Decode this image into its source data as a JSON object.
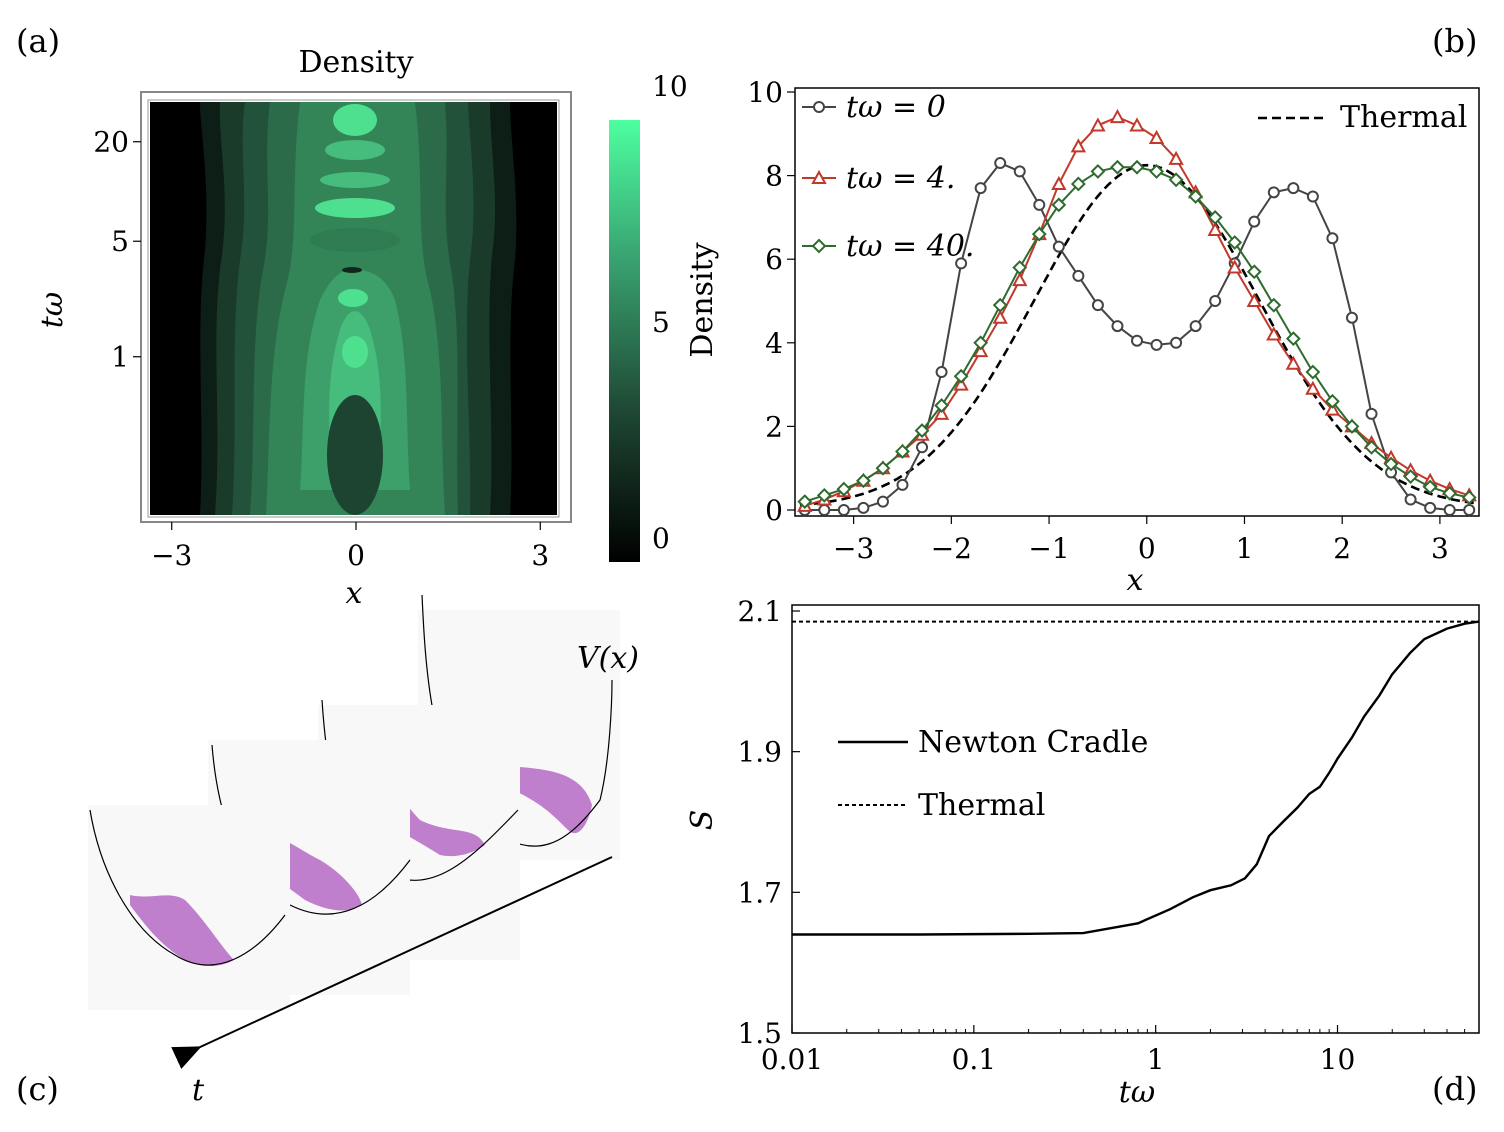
{
  "panels": {
    "a": "(a)",
    "b": "(b)",
    "c": "(c)",
    "d": "(d)"
  },
  "chart_data": [
    {
      "id": "a",
      "type": "heatmap",
      "title": "Density",
      "xlabel": "x",
      "ylabel": "tω",
      "x_ticks": [
        "−3",
        "0",
        "3"
      ],
      "x_tick_values": [
        -3,
        0,
        3
      ],
      "xlim": [
        -3.5,
        3.5
      ],
      "y_ticks": [
        "1",
        "5",
        "20"
      ],
      "y_tick_values": [
        1,
        5,
        20
      ],
      "y_scale": "log",
      "ylim": [
        0.1,
        40
      ],
      "colorbar": {
        "ticks": [
          "0",
          "5",
          "10"
        ],
        "tick_values": [
          0,
          5,
          10
        ],
        "range": [
          0,
          10
        ],
        "colors": [
          "#000000",
          "#1f4a35",
          "#3aa673",
          "#4dffa0"
        ]
      }
    },
    {
      "id": "b",
      "type": "line",
      "xlabel": "x",
      "ylabel": "Density",
      "xlim": [
        -3.6,
        3.4
      ],
      "ylim": [
        0,
        10
      ],
      "x_ticks": [
        "−3",
        "−2",
        "−1",
        "0",
        "1",
        "2",
        "3"
      ],
      "x_tick_values": [
        -3,
        -2,
        -1,
        0,
        1,
        2,
        3
      ],
      "y_ticks": [
        "0",
        "2",
        "4",
        "6",
        "8",
        "10"
      ],
      "y_tick_values": [
        0,
        2,
        4,
        6,
        8,
        10
      ],
      "x": [
        -3.5,
        -3.3,
        -3.1,
        -2.9,
        -2.7,
        -2.5,
        -2.3,
        -2.1,
        -1.9,
        -1.7,
        -1.5,
        -1.3,
        -1.1,
        -0.9,
        -0.7,
        -0.5,
        -0.3,
        -0.1,
        0.1,
        0.3,
        0.5,
        0.7,
        0.9,
        1.1,
        1.3,
        1.5,
        1.7,
        1.9,
        2.1,
        2.3,
        2.5,
        2.7,
        2.9,
        3.1,
        3.3
      ],
      "series": [
        {
          "name": "tω = 0",
          "color": "#444444",
          "marker": "circle",
          "values": [
            0.0,
            0.0,
            0.0,
            0.05,
            0.2,
            0.6,
            1.5,
            3.3,
            5.9,
            7.7,
            8.3,
            8.1,
            7.3,
            6.3,
            5.6,
            4.9,
            4.4,
            4.05,
            3.95,
            4.0,
            4.4,
            5.0,
            5.9,
            6.9,
            7.6,
            7.7,
            7.5,
            6.5,
            4.6,
            2.3,
            0.9,
            0.25,
            0.05,
            0.0,
            0.0
          ]
        },
        {
          "name": "tω = 4.",
          "color": "#c0392b",
          "marker": "triangle",
          "values": [
            0.1,
            0.25,
            0.45,
            0.7,
            1.0,
            1.4,
            1.8,
            2.3,
            3.0,
            3.8,
            4.6,
            5.5,
            6.6,
            7.8,
            8.7,
            9.2,
            9.4,
            9.2,
            8.9,
            8.4,
            7.6,
            6.7,
            5.8,
            5.0,
            4.2,
            3.5,
            2.9,
            2.4,
            2.0,
            1.6,
            1.25,
            0.95,
            0.7,
            0.5,
            0.35
          ]
        },
        {
          "name": "tω = 40.",
          "color": "#2e6b2e",
          "marker": "diamond",
          "values": [
            0.2,
            0.35,
            0.5,
            0.7,
            1.0,
            1.4,
            1.9,
            2.5,
            3.2,
            4.0,
            4.9,
            5.8,
            6.6,
            7.3,
            7.8,
            8.1,
            8.2,
            8.2,
            8.1,
            7.9,
            7.5,
            7.0,
            6.4,
            5.7,
            4.9,
            4.1,
            3.3,
            2.6,
            2.0,
            1.5,
            1.1,
            0.8,
            0.55,
            0.4,
            0.3
          ]
        }
      ],
      "reference": {
        "name": "Thermal",
        "style": "dashed",
        "color": "#000000"
      }
    },
    {
      "id": "d",
      "type": "line",
      "xlabel": "tω",
      "ylabel": "S",
      "x_scale": "log",
      "xlim": [
        0.01,
        60
      ],
      "ylim": [
        1.5,
        2.1
      ],
      "x_ticks": [
        "0.01",
        "0.1",
        "1",
        "10"
      ],
      "x_tick_values": [
        0.01,
        0.1,
        1,
        10
      ],
      "y_ticks": [
        "1.5",
        "1.7",
        "1.9",
        "2.1"
      ],
      "y_tick_values": [
        1.5,
        1.7,
        1.9,
        2.1
      ],
      "series": [
        {
          "name": "Newton Cradle",
          "style": "solid",
          "x": [
            0.01,
            0.05,
            0.2,
            0.4,
            0.8,
            1.2,
            1.6,
            2.0,
            2.6,
            3.1,
            3.6,
            4.2,
            5.0,
            6.0,
            7.0,
            8.0,
            9.0,
            10,
            12,
            14,
            17,
            20,
            25,
            30,
            40,
            50,
            60
          ],
          "y": [
            1.64,
            1.64,
            1.641,
            1.642,
            1.656,
            1.676,
            1.693,
            1.703,
            1.71,
            1.72,
            1.74,
            1.78,
            1.8,
            1.82,
            1.84,
            1.85,
            1.87,
            1.89,
            1.92,
            1.95,
            1.98,
            2.01,
            2.04,
            2.06,
            2.075,
            2.082,
            2.085
          ]
        },
        {
          "name": "Thermal",
          "style": "dotted",
          "x": [
            0.01,
            60
          ],
          "y": [
            2.085,
            2.085
          ]
        }
      ]
    }
  ],
  "diagram_c": {
    "potential_label": "V(x)",
    "axis_label": "t"
  }
}
